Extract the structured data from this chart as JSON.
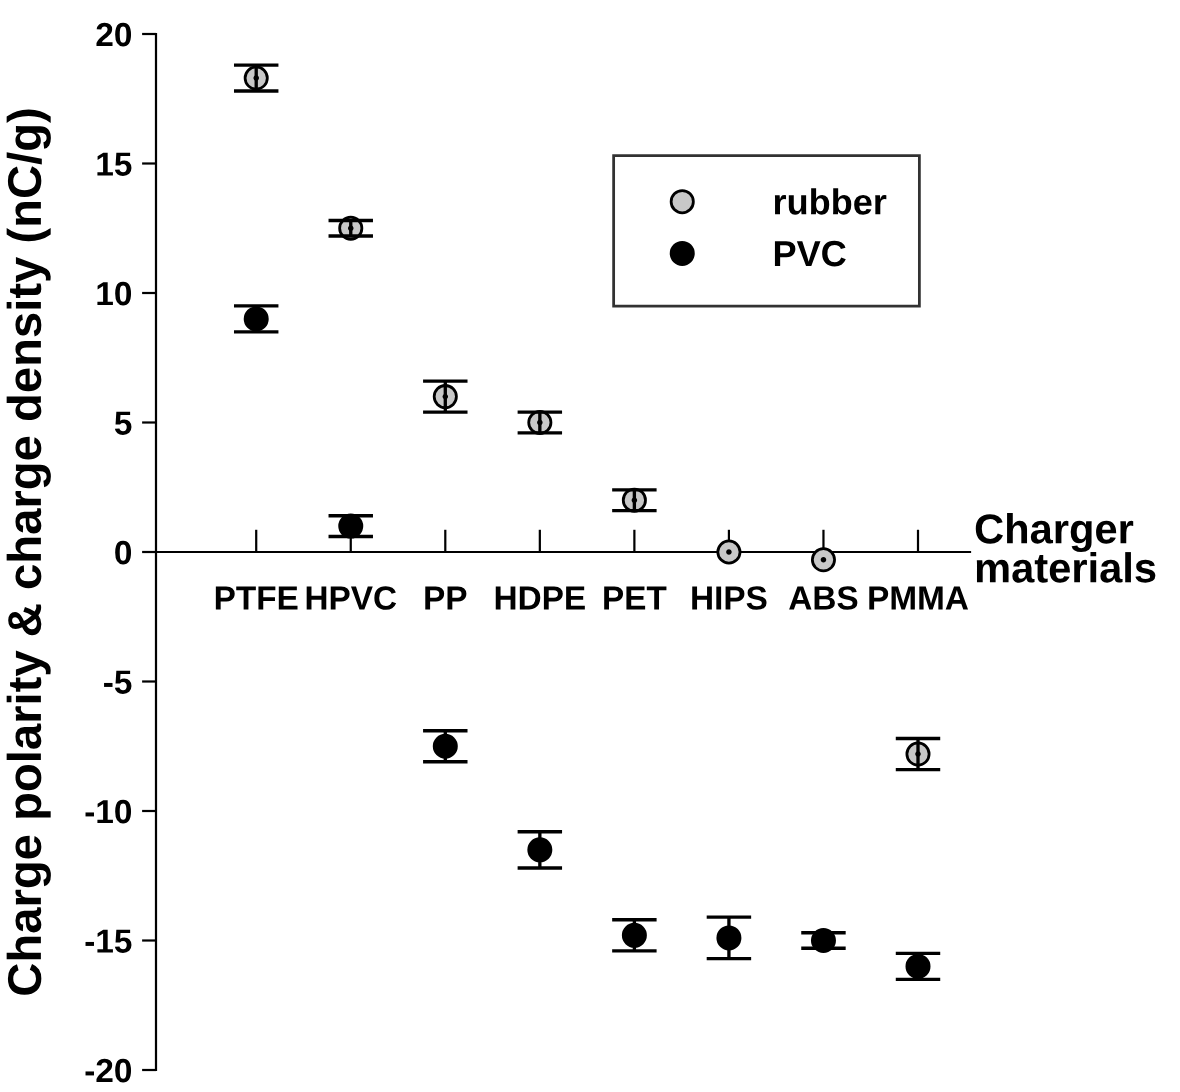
{
  "chart_data": {
    "type": "scatter",
    "ylabel": "Charge polarity & charge density (nC/g)",
    "xlabel": "Charger\nmaterials",
    "categories": [
      "PTFE",
      "HPVC",
      "PP",
      "HDPE",
      "PET",
      "HIPS",
      "ABS",
      "PMMA"
    ],
    "series": [
      {
        "name": "rubber",
        "color": "#c8c8c8",
        "values": [
          18.3,
          12.5,
          6.0,
          5.0,
          2.0,
          0.0,
          -0.3,
          -7.8
        ],
        "errors": [
          0.5,
          0.3,
          0.6,
          0.4,
          0.4,
          null,
          null,
          0.6
        ]
      },
      {
        "name": "PVC",
        "color": "#000000",
        "values": [
          9.0,
          1.0,
          -7.5,
          -11.5,
          -14.8,
          -14.9,
          -15.0,
          -16.0
        ],
        "errors": [
          0.5,
          0.4,
          0.6,
          0.7,
          0.6,
          0.8,
          0.3,
          0.5
        ]
      }
    ],
    "ylim": [
      -20,
      20
    ],
    "yticks": [
      -20,
      -15,
      -10,
      -5,
      0,
      5,
      10,
      15,
      20
    ],
    "marker": "circle",
    "legend": "top right",
    "grid": false
  }
}
